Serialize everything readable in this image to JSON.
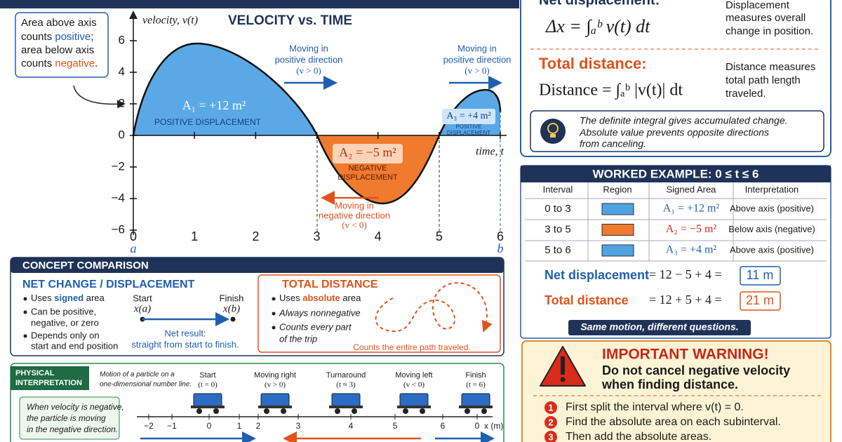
{
  "annotation": {
    "line1": "Area above axis",
    "line2_pre": "counts ",
    "line2_em": "positive",
    "line2_post": ";",
    "line3": "area below axis",
    "line4_pre": "counts ",
    "line4_em": "negative",
    "line4_post": "."
  },
  "graph": {
    "title": "VELOCITY vs. TIME",
    "y_axis_label": "velocity, v(t)",
    "x_axis_label": "time, t",
    "a_label": "a",
    "b_label": "b",
    "xlim": [
      0,
      6
    ],
    "ylim": [
      -6,
      6
    ],
    "xticks": [
      0,
      1,
      2,
      3,
      4,
      5,
      6
    ],
    "yticks": [
      {
        "value": -6,
        "label": "−6"
      },
      {
        "value": -4,
        "label": "−4"
      },
      {
        "value": -2,
        "label": "−2"
      },
      0,
      2,
      4,
      6
    ],
    "areas": [
      {
        "label": "A₁ = +12 m²",
        "caption": [
          "POSITIVE DISPLACEMENT"
        ]
      },
      {
        "label": "A₂ = −5 m²",
        "caption": [
          "NEGATIVE",
          "DISPLACEMENT"
        ]
      },
      {
        "label": "A₃ = +4 m²",
        "caption": [
          "POSITIVE",
          "DISPLACEMENT"
        ]
      }
    ],
    "motion_notes": [
      [
        "Moving in",
        "positive direction",
        "(v > 0)"
      ],
      [
        "Moving in",
        "positive direction",
        "(v > 0)"
      ],
      [
        "Moving in",
        "negative direction",
        "(v < 0)"
      ]
    ]
  },
  "formulas": {
    "net": {
      "title": "Net displacement:",
      "formula": "Δx = ∫ₐᵇ v(t) dt",
      "note": [
        "Displacement",
        "measures overall",
        "change in position."
      ]
    },
    "total": {
      "title": "Total distance:",
      "formula": "Distance = ∫ₐᵇ |v(t)| dt",
      "note": [
        "Distance measures",
        "total path length",
        "traveled."
      ]
    },
    "tip": [
      "The definite integral gives accumulated change.",
      "Absolute value prevents opposite directions",
      "from canceling."
    ]
  },
  "worked_example": {
    "title": "WORKED EXAMPLE: 0 ≤ t ≤ 6",
    "headers": [
      "Interval",
      "Region",
      "Signed Area",
      "Interpretation"
    ],
    "rows": [
      {
        "interval": "0 to 3",
        "color": "#4fa3e3",
        "signed_area": "A₁ = +12 m²",
        "interpretation": "Above axis (positive)"
      },
      {
        "interval": "3 to 5",
        "color": "#f07a2e",
        "signed_area": "A₂ = −5 m²",
        "interpretation": "Below axis (negative)"
      },
      {
        "interval": "5 to 6",
        "color": "#4fa3e3",
        "signed_area": "A₃ = +4 m²",
        "interpretation": "Above axis (positive)"
      }
    ],
    "net": {
      "label": "Net displacement",
      "expression": "= 12 − 5 + 4 =",
      "result": "11 m"
    },
    "total": {
      "label": "Total distance",
      "expression": "= 12 + 5 + 4 =",
      "result": "21 m"
    },
    "banner": "Same motion, different questions."
  },
  "warning": {
    "title": "IMPORTANT WARNING!",
    "message": [
      "Do not cancel negative velocity",
      "when finding distance."
    ],
    "steps": [
      {
        "number": "1",
        "text": "First split the interval where v(t) = 0."
      },
      {
        "number": "2",
        "text": "Find the absolute area on each subinterval."
      },
      {
        "number": "3",
        "text": "Then add the absolute areas."
      }
    ]
  },
  "comparison": {
    "title": "CONCEPT COMPARISON",
    "net": {
      "title": "NET CHANGE / DISPLACEMENT",
      "bullet1_pre": "Uses ",
      "bullet1_em": "signed",
      "bullet1_post": " area",
      "bullet2": [
        "Can be positive,",
        "negative, or zero"
      ],
      "bullet3": [
        "Depends only on",
        "start and end position"
      ],
      "start": "Start",
      "start_expr": "x(a)",
      "finish": "Finish",
      "finish_expr": "x(b)",
      "result": [
        "Net result:",
        "straight from start to finish."
      ]
    },
    "total": {
      "title": "TOTAL DISTANCE",
      "bullet1_pre": "Uses ",
      "bullet1_em": "absolute",
      "bullet1_post": " area",
      "bullet2": "Always nonnegative",
      "bullet3": [
        "Counts every part",
        "of the trip"
      ],
      "caption": "Counts the entire path traveled."
    }
  },
  "physical": {
    "title": [
      "PHYSICAL",
      "INTERPRETATION"
    ],
    "subtitle": [
      "Motion of a particle on a",
      "one-dimensional number line."
    ],
    "note": [
      "When velocity is negative,",
      "the particle is moving",
      "in the negative direction."
    ],
    "stages": [
      {
        "label": "Start",
        "condition": "(t = 0)"
      },
      {
        "label": "Moving right",
        "condition": "(v > 0)"
      },
      {
        "label": "Turnaround",
        "condition": "(t ≈ 3)"
      },
      {
        "label": "Moving left",
        "condition": "(v < 0)"
      },
      {
        "label": "Finish",
        "condition": "(t = 6)"
      }
    ],
    "number_line": [
      "−2",
      "−1",
      "0",
      "1",
      "2",
      "3",
      "4",
      "5",
      "6",
      "0"
    ],
    "unit": "x (m)"
  }
}
